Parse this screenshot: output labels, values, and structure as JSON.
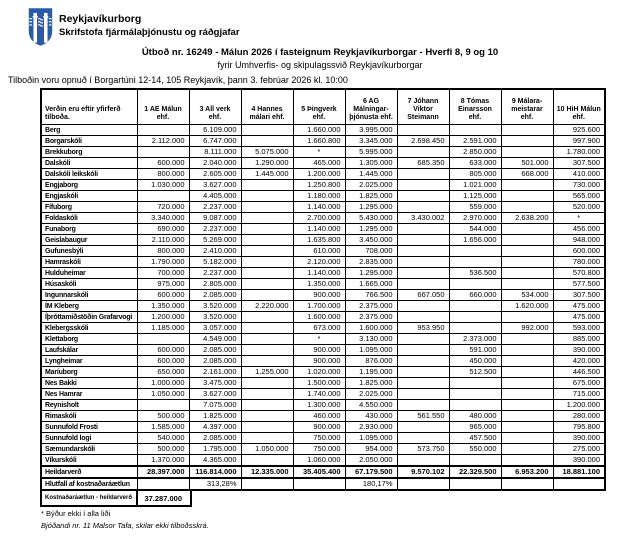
{
  "colors": {
    "logo_blue": "#2b5ba6"
  },
  "letterhead": {
    "org_name": "Reykjavíkurborg",
    "org_dept": "Skrifstofa fjármálaþjónustu og ráðgjafar"
  },
  "header": {
    "title": "Útboð nr. 16249 - Málun 2026 í fasteignum Reykjavíkurborgar - Hverfi 8, 9 og 10",
    "subtitle": "fyrir Umhverfis- og skipulagssvið Reykjavíkurborgar",
    "opening_line": "Tilboðin voru opnuð í Borgartúni 12-14, 105 Reykjavík, þann 3. febrúar 2026 kl. 10:00"
  },
  "table": {
    "corner_label": "Verðin eru eftir yfirferð tilboða.",
    "bidders": [
      "1 AE Málun ehf.",
      "3 All verk ehf.",
      "4 Hannes málari ehf.",
      "5 Þingverk ehf.",
      "6 AG Málningar- þjónusta ehf.",
      "7 Jóhann Viktor Steimann",
      "8 Tómas Einarsson ehf.",
      "9 Málara- meistarar ehf.",
      "10 HiH Málun ehf."
    ],
    "rows": [
      {
        "name": "Berg",
        "values": [
          "",
          "6.109.000",
          "",
          "1.660.000",
          "3.995.000",
          "",
          "",
          "",
          "925.600"
        ]
      },
      {
        "name": "Borgarskóli",
        "values": [
          "2.112.000",
          "6.747.000",
          "",
          "1.660.800",
          "3.345.000",
          "2.698.450",
          "2.591.000",
          "",
          "997.900"
        ]
      },
      {
        "name": "Brekkuborg",
        "values": [
          "",
          "8.111.000",
          "5.075.000",
          "*",
          "5.995.000",
          "",
          "2.850.000",
          "",
          "1.780.000"
        ]
      },
      {
        "name": "Dalskóli",
        "values": [
          "600.000",
          "2.040.000",
          "1.290.000",
          "465.000",
          "1.305.000",
          "685.350",
          "633.000",
          "501.000",
          "307.500"
        ]
      },
      {
        "name": "Dalskóli leikskóli",
        "values": [
          "800.000",
          "2.605.000",
          "1.445.000",
          "1.200.000",
          "1.445.000",
          "",
          "805.000",
          "668.000",
          "410.000"
        ]
      },
      {
        "name": "Engjaborg",
        "values": [
          "1.030.000",
          "3.627.000",
          "",
          "1.250.800",
          "2.025.000",
          "",
          "1.021.000",
          "",
          "730.000"
        ]
      },
      {
        "name": "Engjaskóli",
        "values": [
          "",
          "4.405.000",
          "",
          "1.180.000",
          "1.825.000",
          "",
          "1.125.000",
          "",
          "565.000"
        ]
      },
      {
        "name": "Fífuborg",
        "values": [
          "720.000",
          "2.237.000",
          "",
          "1.140.000",
          "1.295.000",
          "",
          "559.000",
          "",
          "520.000"
        ]
      },
      {
        "name": "Foldaskóli",
        "values": [
          "3.340.000",
          "9.087.000",
          "",
          "2.700.000",
          "5.430.000",
          "3.430.002",
          "2.970.000",
          "2.638.200",
          "*"
        ]
      },
      {
        "name": "Funaborg",
        "values": [
          "690.000",
          "2.237.000",
          "",
          "1.140.000",
          "1.295.000",
          "",
          "544.000",
          "",
          "456.000"
        ]
      },
      {
        "name": "Geislabaugur",
        "values": [
          "2.110.000",
          "5.269.000",
          "",
          "1.635.800",
          "3.450.000",
          "",
          "1.656.000",
          "",
          "948.000"
        ]
      },
      {
        "name": "Gufunesbýli",
        "values": [
          "800.000",
          "2.410.000",
          "",
          "610.000",
          "708.000",
          "",
          "",
          "",
          "600.000"
        ]
      },
      {
        "name": "Hamraskóli",
        "values": [
          "1.790.000",
          "5.182.000",
          "",
          "2.120.000",
          "2.835.000",
          "",
          "",
          "",
          "780.000"
        ]
      },
      {
        "name": "Hulduheimar",
        "values": [
          "700.000",
          "2.237.000",
          "",
          "1.140.000",
          "1.295.000",
          "",
          "536.500",
          "",
          "570.800"
        ]
      },
      {
        "name": "Húsaskóli",
        "values": [
          "975.000",
          "2.805.000",
          "",
          "1.350.000",
          "1.665.000",
          "",
          "",
          "",
          "577.500"
        ]
      },
      {
        "name": "Ingunnarskóli",
        "values": [
          "600.000",
          "2.085.000",
          "",
          "900.000",
          "766.500",
          "667.050",
          "660.000",
          "534.000",
          "307.500"
        ]
      },
      {
        "name": "ÍM Kleberg",
        "values": [
          "1.350.000",
          "3.520.000",
          "2.220.000",
          "1.700.000",
          "2.375.000",
          "",
          "",
          "1.620.000",
          "475.000"
        ]
      },
      {
        "name": "Íþróttamiðstöðin Grafarvogi",
        "values": [
          "1.200.000",
          "3.520.000",
          "",
          "1.600.000",
          "2.375.000",
          "",
          "",
          "",
          "475.000"
        ]
      },
      {
        "name": "Klebergsskóli",
        "values": [
          "1.185.000",
          "3.057.000",
          "",
          "673.000",
          "1.600.000",
          "953.950",
          "",
          "992.000",
          "593.000"
        ]
      },
      {
        "name": "Klettaborg",
        "values": [
          "",
          "4.549.000",
          "",
          "*",
          "3.130.000",
          "",
          "2.373.000",
          "",
          "885.000"
        ]
      },
      {
        "name": "Laufskálar",
        "values": [
          "600.000",
          "2.085.000",
          "",
          "900.000",
          "1.095.000",
          "",
          "591.000",
          "",
          "390.000"
        ]
      },
      {
        "name": "Lyngheimar",
        "values": [
          "600.000",
          "2.085.000",
          "",
          "900.000",
          "876.000",
          "",
          "450.000",
          "",
          "420.000"
        ]
      },
      {
        "name": "Maríuborg",
        "values": [
          "650.000",
          "2.161.000",
          "1.255.000",
          "1.020.000",
          "1.195.000",
          "",
          "512.500",
          "",
          "446.500"
        ]
      },
      {
        "name": "Nes Bakki",
        "values": [
          "1.000.000",
          "3.475.000",
          "",
          "1.500.000",
          "1.825.000",
          "",
          "",
          "",
          "675.000"
        ]
      },
      {
        "name": "Nes Hamrar",
        "values": [
          "1.050.000",
          "3.627.000",
          "",
          "1.740.000",
          "2.025.000",
          "",
          "",
          "",
          "715.000"
        ]
      },
      {
        "name": "Reynisholt",
        "values": [
          "",
          "7.075.000",
          "",
          "1.300.000",
          "4.550.000",
          "",
          "",
          "",
          "1.200.000"
        ]
      },
      {
        "name": "Rimaskóli",
        "values": [
          "500.000",
          "1.825.000",
          "",
          "460.000",
          "430.000",
          "561.550",
          "480.000",
          "",
          "280.000"
        ]
      },
      {
        "name": "Sunnufold Frosti",
        "values": [
          "1.585.000",
          "4.397.000",
          "",
          "900.000",
          "2.930.000",
          "",
          "965.000",
          "",
          "795.800"
        ]
      },
      {
        "name": "Sunnufold logi",
        "values": [
          "540.000",
          "2.085.000",
          "",
          "750.000",
          "1.095.000",
          "",
          "457.500",
          "",
          "390.000"
        ]
      },
      {
        "name": "Sæmundarskóli",
        "values": [
          "500.000",
          "1.795.000",
          "1.050.000",
          "750.000",
          "954.000",
          "573.750",
          "550.000",
          "",
          "275.000"
        ]
      },
      {
        "name": "Víkurskóli",
        "values": [
          "1.370.000",
          "4.365.000",
          "",
          "1.060.000",
          "2.050.000",
          "",
          "",
          "",
          "390.000"
        ]
      }
    ],
    "total_row": {
      "name": "Heildarverð",
      "values": [
        "28.397.000",
        "116.814.000",
        "12.335.000",
        "35.405.400",
        "67.179.500",
        "9.570.102",
        "22.329.500",
        "6.953.200",
        "18.881.100"
      ]
    },
    "ratio_row": {
      "name": "Hlutfall af kostnaðaráætlun",
      "values": [
        "",
        "313,28%",
        "",
        "",
        "180,17%",
        "",
        "",
        "",
        ""
      ]
    },
    "estimate_row": {
      "name": "Kostnaðaráætlun - heildarverð",
      "value": "37.287.000"
    }
  },
  "footnotes": {
    "line1": "* Býður ekki í alla liði",
    "line2": "Bjóðandi nr. 11 Malsor Tafa, skilar ekki tilboðsskrá."
  }
}
